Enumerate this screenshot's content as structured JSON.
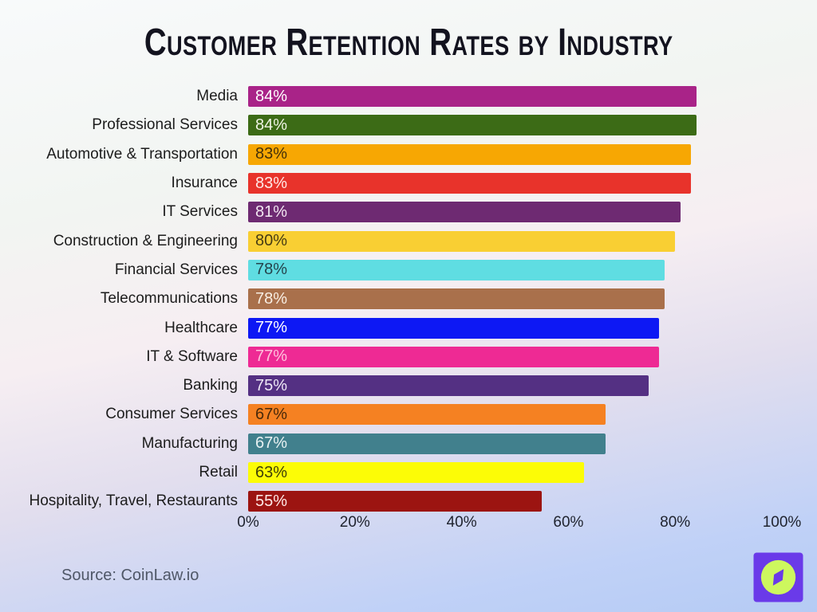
{
  "title": "Customer Retention Rates by Industry",
  "source": "Source: CoinLaw.io",
  "logo": {
    "icon": "compass-icon",
    "square_color": "#6a3ae9",
    "circle_color": "#cdf75e",
    "needle_color": "#6a3ae9"
  },
  "chart_data": {
    "type": "bar",
    "orientation": "horizontal",
    "title": "Customer Retention Rates by Industry",
    "xlabel": "",
    "ylabel": "",
    "xlim": [
      0,
      100
    ],
    "grid": false,
    "legend": false,
    "x_tick_labels": [
      "0%",
      "20%",
      "40%",
      "60%",
      "80%",
      "100%"
    ],
    "x_tick_values": [
      0,
      20,
      40,
      60,
      80,
      100
    ],
    "categories": [
      "Media",
      "Professional Services",
      "Automotive & Transportation",
      "Insurance",
      "IT Services",
      "Construction & Engineering",
      "Financial Services",
      "Telecommunications",
      "Healthcare",
      "IT & Software",
      "Banking",
      "Consumer Services",
      "Manufacturing",
      "Retail",
      "Hospitality, Travel, Restaurants"
    ],
    "values": [
      84,
      84,
      83,
      83,
      81,
      80,
      78,
      78,
      77,
      77,
      75,
      67,
      67,
      63,
      55
    ],
    "value_labels": [
      "84%",
      "84%",
      "83%",
      "83%",
      "81%",
      "80%",
      "78%",
      "78%",
      "77%",
      "77%",
      "75%",
      "67%",
      "67%",
      "63%",
      "55%"
    ],
    "bar_colors": [
      "#a92388",
      "#3c6b16",
      "#f7a703",
      "#e8332b",
      "#6e2a72",
      "#f9cf33",
      "#5fdde2",
      "#a9704b",
      "#0d18f4",
      "#ee2a94",
      "#543083",
      "#f58122",
      "#41808d",
      "#fcfc06",
      "#9c1411"
    ],
    "value_label_colors": [
      "#ffffff",
      "#eef3e4",
      "#44300a",
      "#ffe9e6",
      "#f2e6f1",
      "#473c14",
      "#25444c",
      "#f8eee3",
      "#ffffff",
      "#ffc0dc",
      "#eee8f6",
      "#48290a",
      "#e8f1f2",
      "#3f3f08",
      "#ffe9e6"
    ]
  }
}
